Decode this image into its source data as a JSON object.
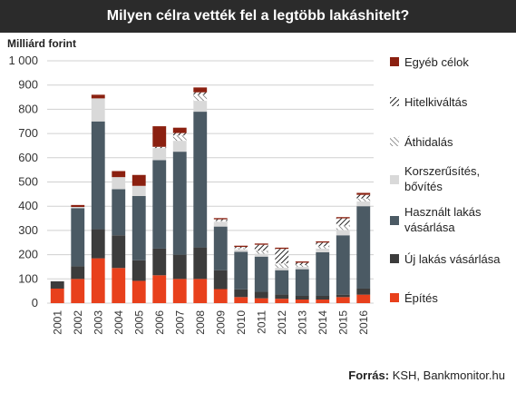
{
  "header": {
    "title": "Milyen célra vették fel a legtöbb lakáshitelt?"
  },
  "unit_label": "Milliárd forint",
  "source": {
    "label": "Forrás:",
    "text": "KSH, Bankmonitor.hu"
  },
  "chart_data": {
    "type": "bar",
    "stacked": true,
    "title": "Milyen célra vették fel a legtöbb lakáshitelt?",
    "ylabel": "Milliárd forint",
    "ylim": [
      0,
      1000
    ],
    "yticks": [
      0,
      100,
      200,
      300,
      400,
      500,
      600,
      700,
      800,
      900,
      1000
    ],
    "ytick_labels": [
      "0",
      "100",
      "200",
      "300",
      "400",
      "500",
      "600",
      "700",
      "800",
      "900",
      "1 000"
    ],
    "categories": [
      "2001",
      "2002",
      "2003",
      "2004",
      "2005",
      "2006",
      "2007",
      "2008",
      "2009",
      "2010",
      "2011",
      "2012",
      "2013",
      "2014",
      "2015",
      "2016"
    ],
    "series": [
      {
        "name": "Építés",
        "color": "#e8401c",
        "pattern": "solid",
        "values": [
          60,
          100,
          185,
          145,
          92,
          115,
          100,
          100,
          58,
          25,
          20,
          18,
          15,
          15,
          25,
          35
        ]
      },
      {
        "name": "Új lakás vásárlása",
        "color": "#3c3c3c",
        "pattern": "solid",
        "values": [
          30,
          52,
          120,
          135,
          85,
          110,
          100,
          130,
          78,
          32,
          27,
          18,
          15,
          15,
          10,
          25
        ]
      },
      {
        "name": "Használt lakás vásárlása",
        "color": "#4b5a64",
        "pattern": "solid",
        "values": [
          0,
          240,
          445,
          190,
          265,
          365,
          425,
          560,
          180,
          155,
          145,
          100,
          110,
          180,
          245,
          340
        ]
      },
      {
        "name": "Korszerűsítés, bővítés",
        "color": "#d9d9d9",
        "pattern": "solid",
        "values": [
          0,
          5,
          95,
          50,
          42,
          50,
          45,
          45,
          20,
          10,
          12,
          10,
          10,
          15,
          22,
          20
        ]
      },
      {
        "name": "Áthidalás",
        "color": "#555555",
        "pattern": "hatch-light",
        "values": [
          0,
          0,
          0,
          0,
          0,
          0,
          22,
          25,
          5,
          5,
          12,
          18,
          7,
          10,
          18,
          12
        ]
      },
      {
        "name": "Hitelkiváltás",
        "color": "#333333",
        "pattern": "hatch-dense",
        "values": [
          0,
          0,
          0,
          0,
          0,
          5,
          10,
          10,
          5,
          5,
          25,
          60,
          10,
          15,
          30,
          15
        ]
      },
      {
        "name": "Egyéb célok",
        "color": "#8b2010",
        "pattern": "solid",
        "values": [
          0,
          8,
          15,
          25,
          45,
          85,
          22,
          20,
          5,
          5,
          5,
          5,
          5,
          5,
          5,
          8
        ]
      }
    ],
    "legend_position": "right",
    "grid": true
  }
}
